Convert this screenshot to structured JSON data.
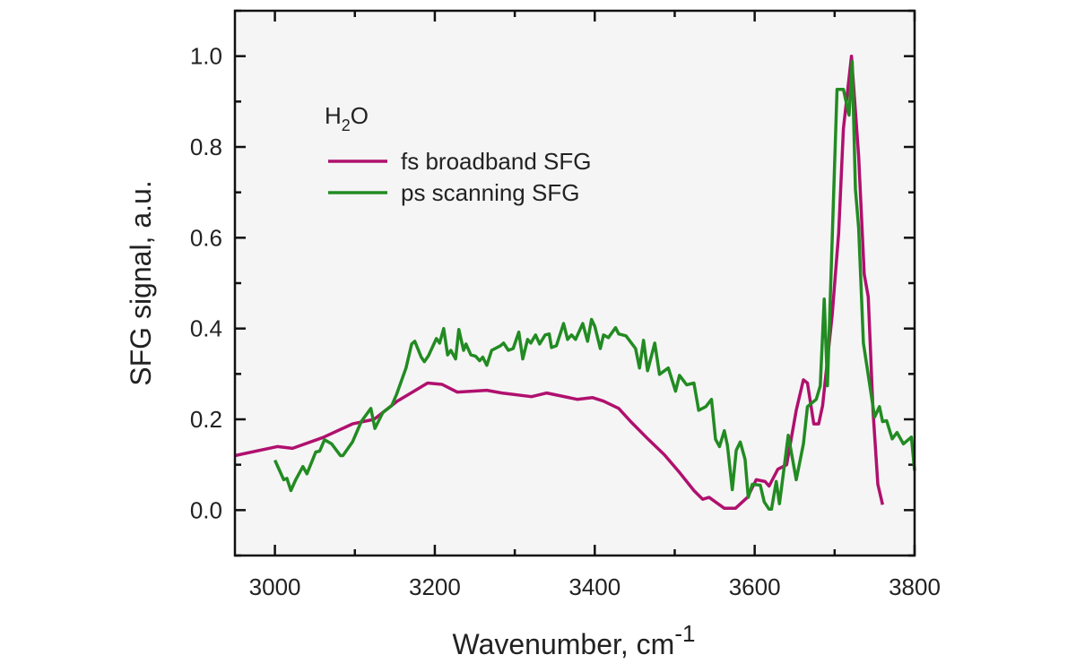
{
  "chart_data": {
    "type": "line",
    "xlabel": {
      "text": "Wavenumber, cm",
      "superscript": "-1"
    },
    "ylabel": "SFG signal, a.u.",
    "xlim": [
      2950,
      3800
    ],
    "ylim": [
      -0.1,
      1.1
    ],
    "xticks": [
      3000,
      3200,
      3400,
      3600,
      3800
    ],
    "xtick_labels": [
      "3000",
      "3200",
      "3400",
      "3600",
      "3800"
    ],
    "yticks": [
      0.0,
      0.2,
      0.4,
      0.6,
      0.8,
      1.0
    ],
    "ytick_labels": [
      "0.0",
      "0.2",
      "0.4",
      "0.6",
      "0.8",
      "1.0"
    ],
    "grid": false,
    "legend_placement": "top-left",
    "legend_title": {
      "main": "H",
      "sub": "2",
      "tail": "O"
    },
    "background": "#f5f5f5",
    "series": [
      {
        "name": "fs broadband SFG",
        "color": "#b0106e",
        "x": [
          2950,
          3003,
          3022,
          3060,
          3097,
          3124,
          3153,
          3172,
          3191,
          3209,
          3228,
          3265,
          3284,
          3321,
          3340,
          3378,
          3397,
          3411,
          3430,
          3445,
          3467,
          3487,
          3506,
          3524,
          3535,
          3543,
          3562,
          3576,
          3591,
          3602,
          3613,
          3618,
          3629,
          3640,
          3652,
          3661,
          3666,
          3674,
          3680,
          3685,
          3697,
          3705,
          3711,
          3721,
          3730,
          3737,
          3742,
          3748,
          3754,
          3760
        ],
        "y": [
          0.12,
          0.14,
          0.136,
          0.16,
          0.19,
          0.2,
          0.24,
          0.26,
          0.28,
          0.277,
          0.26,
          0.264,
          0.258,
          0.25,
          0.258,
          0.244,
          0.248,
          0.24,
          0.224,
          0.195,
          0.156,
          0.122,
          0.083,
          0.043,
          0.024,
          0.028,
          0.004,
          0.004,
          0.028,
          0.067,
          0.063,
          0.053,
          0.09,
          0.1,
          0.22,
          0.287,
          0.28,
          0.19,
          0.19,
          0.23,
          0.43,
          0.61,
          0.84,
          1.0,
          0.78,
          0.52,
          0.47,
          0.22,
          0.057,
          0.012
        ]
      },
      {
        "name": "ps scanning SFG",
        "color": "#228b22",
        "x": [
          3000,
          3011,
          3015,
          3020,
          3026,
          3035,
          3040,
          3051,
          3056,
          3062,
          3071,
          3082,
          3085,
          3097,
          3108,
          3120,
          3125,
          3135,
          3146,
          3152,
          3164,
          3171,
          3175,
          3183,
          3187,
          3192,
          3202,
          3206,
          3211,
          3216,
          3220,
          3226,
          3230,
          3236,
          3239,
          3245,
          3251,
          3256,
          3260,
          3265,
          3271,
          3282,
          3286,
          3292,
          3298,
          3305,
          3310,
          3316,
          3320,
          3326,
          3331,
          3338,
          3343,
          3346,
          3352,
          3361,
          3366,
          3371,
          3376,
          3385,
          3391,
          3396,
          3400,
          3407,
          3411,
          3417,
          3426,
          3430,
          3439,
          3451,
          3456,
          3461,
          3466,
          3475,
          3481,
          3492,
          3501,
          3506,
          3515,
          3524,
          3530,
          3539,
          3546,
          3551,
          3556,
          3562,
          3566,
          3572,
          3577,
          3582,
          3588,
          3592,
          3597,
          3607,
          3612,
          3618,
          3621,
          3627,
          3631,
          3642,
          3652,
          3661,
          3666,
          3677,
          3682,
          3687,
          3691,
          3703,
          3711,
          3718,
          3722,
          3726,
          3730,
          3736,
          3750,
          3756,
          3760,
          3765,
          3772,
          3778,
          3786,
          3796,
          3800
        ],
        "y": [
          0.11,
          0.067,
          0.07,
          0.043,
          0.067,
          0.096,
          0.08,
          0.128,
          0.13,
          0.155,
          0.146,
          0.12,
          0.12,
          0.15,
          0.195,
          0.224,
          0.18,
          0.215,
          0.23,
          0.254,
          0.313,
          0.366,
          0.372,
          0.337,
          0.327,
          0.34,
          0.378,
          0.368,
          0.4,
          0.342,
          0.352,
          0.333,
          0.398,
          0.352,
          0.366,
          0.342,
          0.339,
          0.329,
          0.337,
          0.319,
          0.352,
          0.362,
          0.368,
          0.352,
          0.356,
          0.392,
          0.333,
          0.376,
          0.368,
          0.386,
          0.366,
          0.386,
          0.388,
          0.358,
          0.362,
          0.411,
          0.376,
          0.386,
          0.376,
          0.411,
          0.372,
          0.42,
          0.405,
          0.356,
          0.386,
          0.38,
          0.402,
          0.388,
          0.384,
          0.356,
          0.313,
          0.374,
          0.307,
          0.368,
          0.299,
          0.313,
          0.262,
          0.297,
          0.276,
          0.28,
          0.22,
          0.228,
          0.244,
          0.156,
          0.14,
          0.175,
          0.142,
          0.045,
          0.132,
          0.15,
          0.112,
          0.028,
          0.057,
          0.055,
          0.018,
          0.002,
          0.002,
          0.063,
          0.014,
          0.165,
          0.067,
          0.146,
          0.228,
          0.244,
          0.274,
          0.465,
          0.274,
          0.927,
          0.927,
          0.87,
          0.988,
          0.707,
          0.622,
          0.368,
          0.205,
          0.228,
          0.195,
          0.197,
          0.157,
          0.171,
          0.146,
          0.161,
          0.087
        ]
      }
    ]
  }
}
